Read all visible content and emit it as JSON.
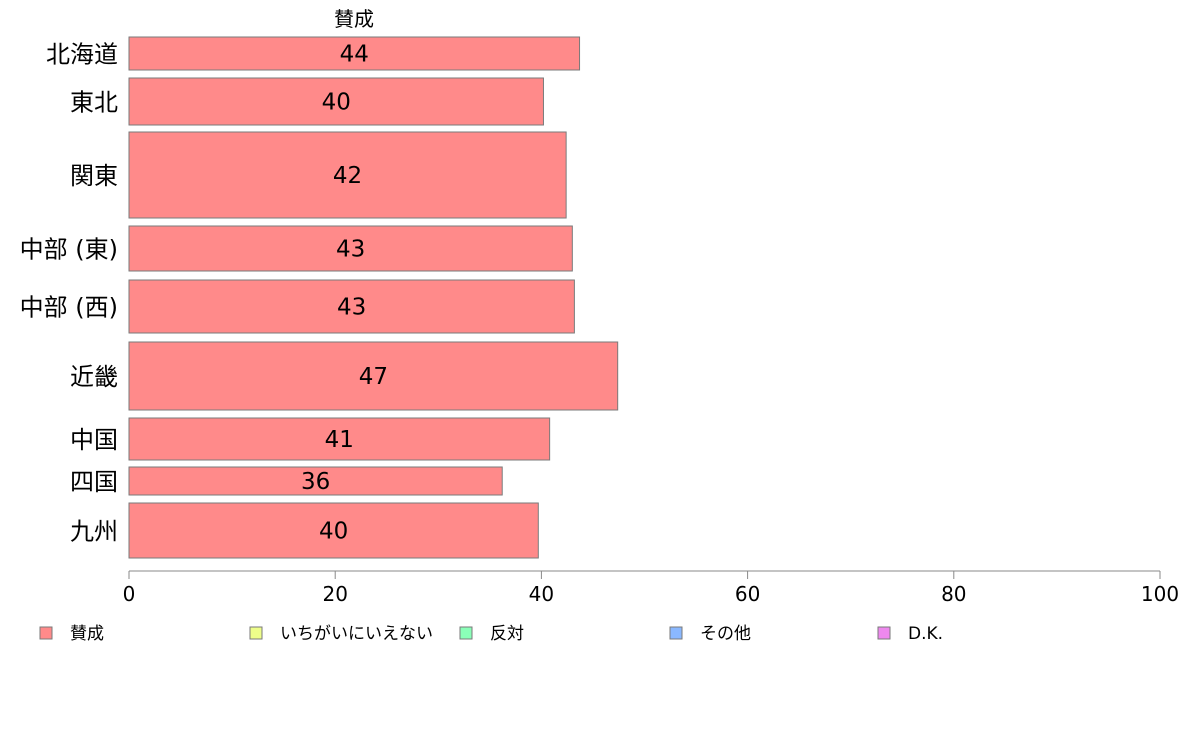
{
  "chart_data": {
    "type": "bar",
    "orientation": "horizontal",
    "stacked": true,
    "column_header": "賛成",
    "categories": [
      "北海道",
      "東北",
      "関東",
      "中部 (東)",
      "中部 (西)",
      "近畿",
      "中国",
      "四国",
      "九州"
    ],
    "series": [
      {
        "name": "賛成",
        "color": "#ff8a8a",
        "values": [
          43.7,
          40.2,
          42.4,
          43.0,
          43.2,
          47.4,
          40.8,
          36.2,
          39.7
        ],
        "labels": [
          "44",
          "40",
          "42",
          "43",
          "43",
          "47",
          "41",
          "36",
          "40"
        ]
      }
    ],
    "xlim": [
      0,
      100
    ],
    "xticks": [
      0,
      20,
      40,
      60,
      80,
      100
    ],
    "xtick_labels": [
      "0",
      "20",
      "40",
      "60",
      "80",
      "100"
    ],
    "legend": {
      "placement": "bottom",
      "items": [
        {
          "label": "賛成",
          "color": "#ff8a8a"
        },
        {
          "label": "いちがいにいえない",
          "color": "#eefe8a"
        },
        {
          "label": "反対",
          "color": "#8affb8"
        },
        {
          "label": "その他",
          "color": "#8ab8ff"
        },
        {
          "label": "D.K.",
          "color": "#ee88ee"
        }
      ]
    }
  }
}
